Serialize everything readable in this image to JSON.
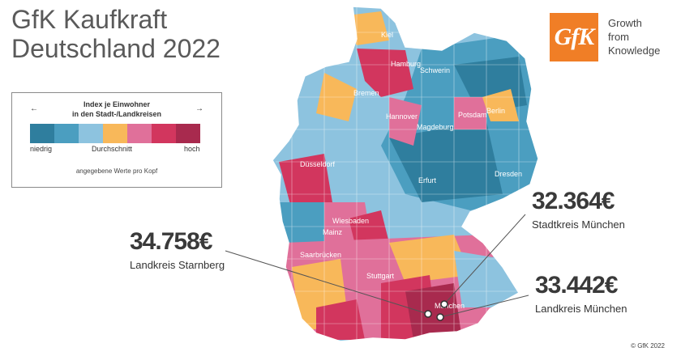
{
  "title": {
    "line1": "GfK Kaufkraft",
    "line2": "Deutschland 2022"
  },
  "logo": {
    "text": "GfK",
    "tagline": [
      "Growth",
      "from",
      "Knowledge"
    ],
    "color": "#f07e26"
  },
  "legend": {
    "title_line1": "Index je Einwohner",
    "title_line2": "in den Stadt-/Landkreisen",
    "arrow_left": "←",
    "arrow_right": "→",
    "low": "niedrig",
    "mid": "Durchschnitt",
    "high": "hoch",
    "note": "angegebene Werte pro Kopf",
    "colors": [
      "#2f7e9e",
      "#4b9ec0",
      "#8dc3df",
      "#f8b85a",
      "#e0709a",
      "#d2365e",
      "#a82a4e"
    ]
  },
  "cities": [
    "Kiel",
    "Hamburg",
    "Schwerin",
    "Bremen",
    "Berlin",
    "Potsdam",
    "Hannover",
    "Magdeburg",
    "Düsseldorf",
    "Dresden",
    "Erfurt",
    "Wiesbaden",
    "Mainz",
    "Saarbrücken",
    "Stuttgart",
    "München"
  ],
  "callouts": [
    {
      "value": "32.364€",
      "label": "Stadtkreis München"
    },
    {
      "value": "34.758€",
      "label": "Landkreis Starnberg"
    },
    {
      "value": "33.442€",
      "label": "Landkreis München"
    }
  ],
  "copyright": "© GfK 2022"
}
